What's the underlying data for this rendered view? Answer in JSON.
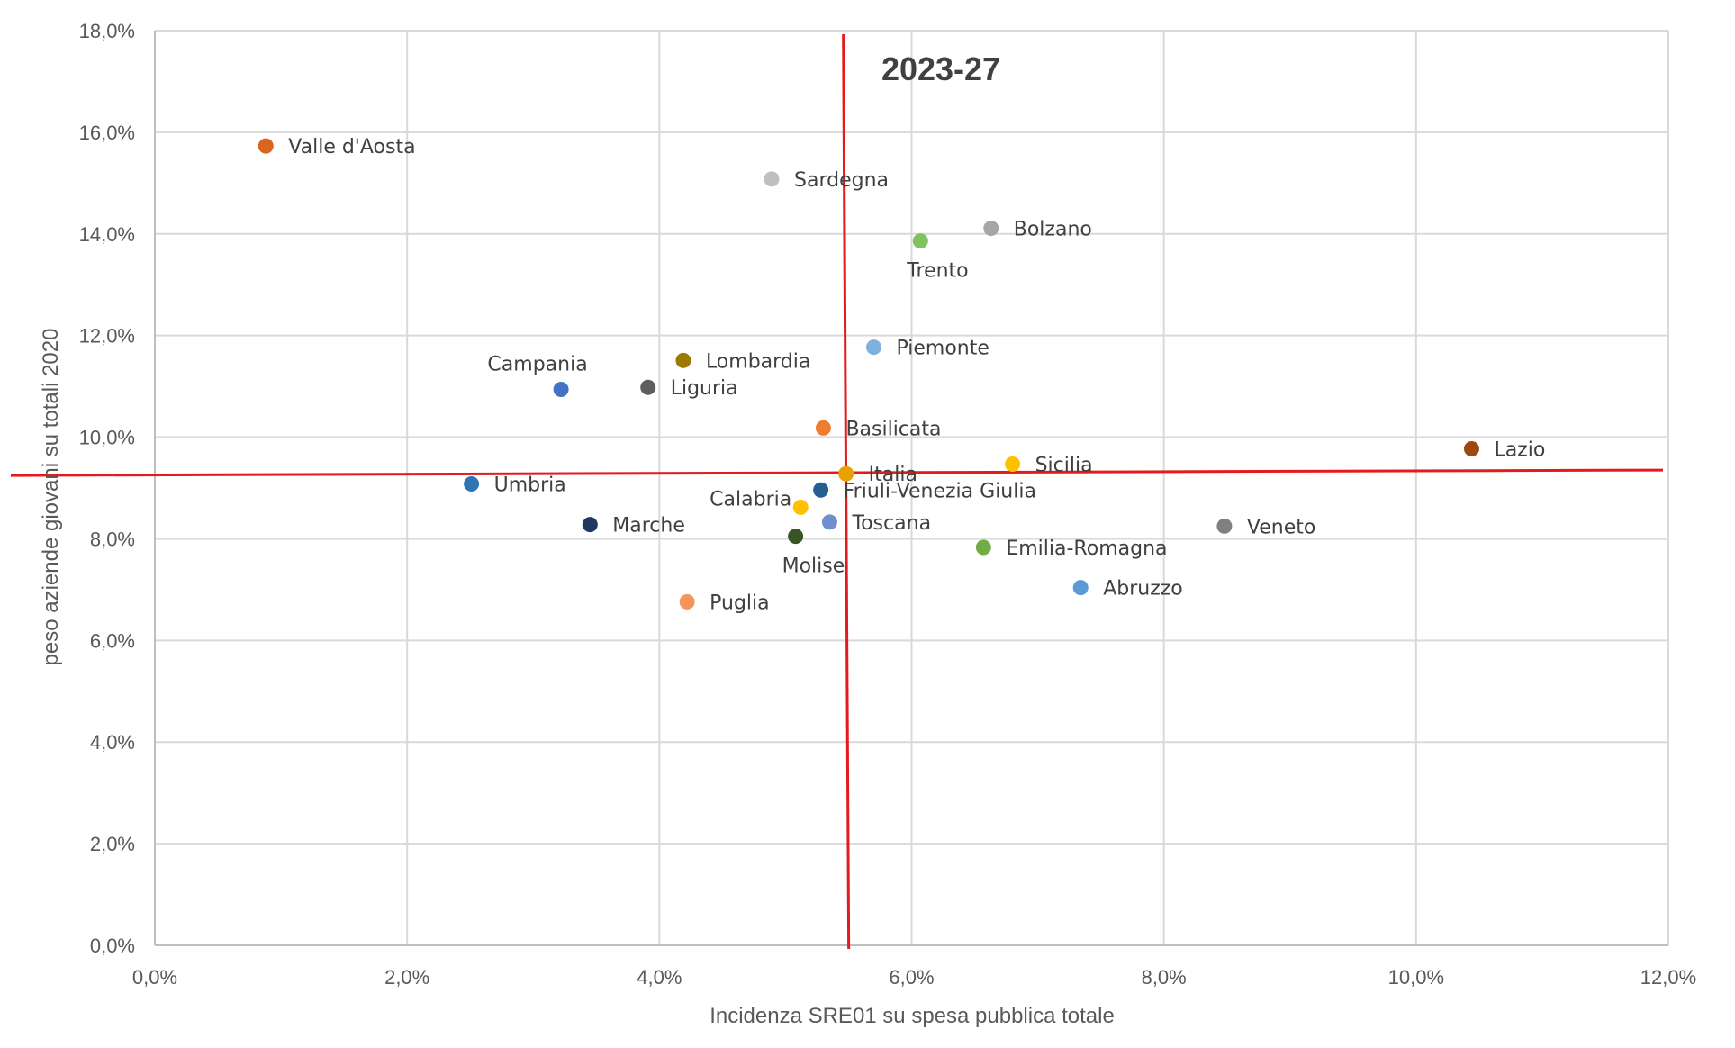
{
  "chart_data": {
    "type": "scatter",
    "title": "2023-27",
    "xlabel": "Incidenza SRE01 su spesa pubblica totale",
    "ylabel": "peso aziende giovani su totali 2020",
    "xlim": [
      0,
      0.12
    ],
    "ylim": [
      0,
      0.18
    ],
    "x_ticks": [
      {
        "value": 0.0,
        "label": "0,0%"
      },
      {
        "value": 0.02,
        "label": "2,0%"
      },
      {
        "value": 0.04,
        "label": "4,0%"
      },
      {
        "value": 0.06,
        "label": "6,0%"
      },
      {
        "value": 0.08,
        "label": "8,0%"
      },
      {
        "value": 0.1,
        "label": "10,0%"
      },
      {
        "value": 0.12,
        "label": "12,0%"
      }
    ],
    "y_ticks": [
      {
        "value": 0.0,
        "label": "0,0%"
      },
      {
        "value": 0.02,
        "label": "2,0%"
      },
      {
        "value": 0.04,
        "label": "4,0%"
      },
      {
        "value": 0.06,
        "label": "6,0%"
      },
      {
        "value": 0.08,
        "label": "8,0%"
      },
      {
        "value": 0.1,
        "label": "10,0%"
      },
      {
        "value": 0.12,
        "label": "12,0%"
      },
      {
        "value": 0.14,
        "label": "14,0%"
      },
      {
        "value": 0.16,
        "label": "16,0%"
      },
      {
        "value": 0.18,
        "label": "18,0%"
      }
    ],
    "grid": true,
    "reference_lines": {
      "x": 0.0548,
      "y": 0.093
    },
    "points": [
      {
        "label": "Valle d'Aosta",
        "x": 0.0088,
        "y": 0.1573,
        "color": "#d9661f",
        "label_pos": "right"
      },
      {
        "label": "Sardegna",
        "x": 0.0489,
        "y": 0.1508,
        "color": "#bfbfbf",
        "label_pos": "right"
      },
      {
        "label": "Bolzano",
        "x": 0.0663,
        "y": 0.1411,
        "color": "#a6a6a6",
        "label_pos": "right"
      },
      {
        "label": "Trento",
        "x": 0.0607,
        "y": 0.1386,
        "color": "#7fc25e",
        "label_pos": "below"
      },
      {
        "label": "Piemonte",
        "x": 0.057,
        "y": 0.1177,
        "color": "#7fb1e0",
        "label_pos": "right"
      },
      {
        "label": "Lombardia",
        "x": 0.0419,
        "y": 0.1151,
        "color": "#9c7a00",
        "label_pos": "right"
      },
      {
        "label": "Campania",
        "x": 0.0322,
        "y": 0.1094,
        "color": "#4472c4",
        "label_pos": "above"
      },
      {
        "label": "Liguria",
        "x": 0.0391,
        "y": 0.1098,
        "color": "#5f5f5f",
        "label_pos": "right"
      },
      {
        "label": "Basilicata",
        "x": 0.053,
        "y": 0.1018,
        "color": "#ed7d31",
        "label_pos": "right"
      },
      {
        "label": "Lazio",
        "x": 0.1044,
        "y": 0.0977,
        "color": "#9e480e",
        "label_pos": "right"
      },
      {
        "label": "Sicilia",
        "x": 0.068,
        "y": 0.0947,
        "color": "#ffc000",
        "label_pos": "right"
      },
      {
        "label": "Italia",
        "x": 0.0548,
        "y": 0.0928,
        "color": "#e8a200",
        "label_pos": "right"
      },
      {
        "label": "Umbria",
        "x": 0.0251,
        "y": 0.0908,
        "color": "#2e75b6",
        "label_pos": "right"
      },
      {
        "label": "Friuli-Venezia Giulia",
        "x": 0.0528,
        "y": 0.0896,
        "color": "#255e91",
        "label_pos": "right"
      },
      {
        "label": "Calabria",
        "x": 0.0512,
        "y": 0.0862,
        "color": "#ffc000",
        "label_pos": "left"
      },
      {
        "label": "Toscana",
        "x": 0.0535,
        "y": 0.0833,
        "color": "#6f8fd0",
        "label_pos": "right"
      },
      {
        "label": "Marche",
        "x": 0.0345,
        "y": 0.0828,
        "color": "#203864",
        "label_pos": "right"
      },
      {
        "label": "Veneto",
        "x": 0.0848,
        "y": 0.0825,
        "color": "#808080",
        "label_pos": "right"
      },
      {
        "label": "Molise",
        "x": 0.0508,
        "y": 0.0805,
        "color": "#375623",
        "label_pos": "below"
      },
      {
        "label": "Emilia-Romagna",
        "x": 0.0657,
        "y": 0.0783,
        "color": "#70ad47",
        "label_pos": "right"
      },
      {
        "label": "Abruzzo",
        "x": 0.0734,
        "y": 0.0704,
        "color": "#5b9bd5",
        "label_pos": "right"
      },
      {
        "label": "Puglia",
        "x": 0.0422,
        "y": 0.0676,
        "color": "#f4955a",
        "label_pos": "right"
      }
    ]
  },
  "colors": {
    "reference_line": "#e41a1c",
    "grid": "#d9d9d9"
  }
}
